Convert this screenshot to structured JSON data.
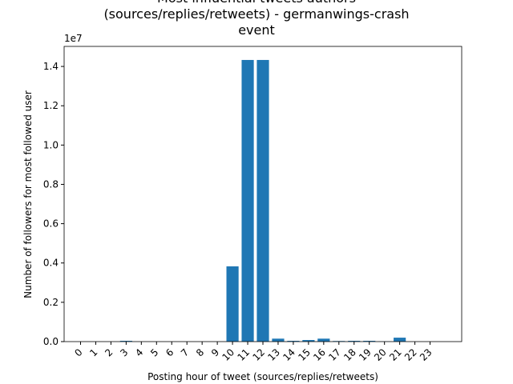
{
  "chart_data": {
    "type": "bar",
    "title": "Most influential tweets authors\n(sources/replies/retweets) - germanwings-crash\nevent",
    "x_label": "Posting hour of tweet (sources/replies/retweets)",
    "y_label": "Number of followers for most followed user",
    "y_offset_label": "1e7",
    "categories": [
      "0",
      "1",
      "2",
      "3",
      "4",
      "5",
      "6",
      "7",
      "8",
      "9",
      "10",
      "11",
      "12",
      "13",
      "14",
      "15",
      "16",
      "17",
      "18",
      "19",
      "20",
      "21",
      "22",
      "23"
    ],
    "values": [
      0,
      0,
      0,
      0.004,
      0,
      0,
      0,
      0,
      0,
      0,
      0.383,
      1.433,
      1.433,
      0.015,
      0.004,
      0.008,
      0.015,
      0.003,
      0.004,
      0.004,
      0.001,
      0.02,
      0,
      0
    ],
    "color": "#1f77b4",
    "ylim": [
      0,
      1.502
    ],
    "yticks": [
      {
        "value": 0,
        "label": "0.0"
      },
      {
        "value": 0.2,
        "label": "0.2"
      },
      {
        "value": 0.4,
        "label": "0.4"
      },
      {
        "value": 0.6,
        "label": "0.6"
      },
      {
        "value": 0.8,
        "label": "0.8"
      },
      {
        "value": 1.0,
        "label": "1.0"
      },
      {
        "value": 1.2,
        "label": "1.2"
      },
      {
        "value": 1.4,
        "label": "1.4"
      }
    ],
    "grid": false
  }
}
